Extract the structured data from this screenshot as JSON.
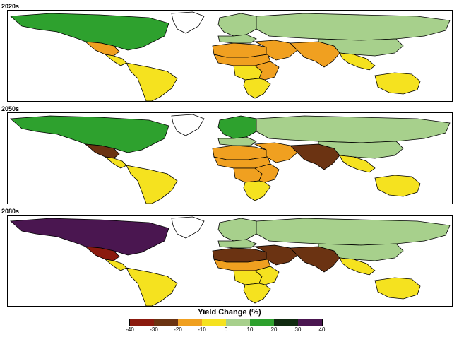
{
  "periods": [
    {
      "label": "2020s",
      "fills": {
        "north_america": "#2ea12e",
        "mexico": "#f0a020",
        "central_america": "#f5e21f",
        "south_america": "#f5e21f",
        "europe_north": "#a7d08c",
        "europe_south": "#a7d08c",
        "russia": "#a7d08c",
        "middle_east": "#f0a020",
        "north_africa": "#f0a020",
        "sahel": "#f0a020",
        "central_africa": "#f5e21f",
        "east_africa": "#f0a020",
        "southern_africa": "#f5e21f",
        "south_asia": "#f0a020",
        "china": "#a7d08c",
        "southeast_asia": "#f5e21f",
        "australia": "#f5e21f",
        "greenland": "#ffffff"
      }
    },
    {
      "label": "2050s",
      "fills": {
        "north_america": "#2ea12e",
        "mexico": "#6b3312",
        "central_america": "#f5e21f",
        "south_america": "#f5e21f",
        "europe_north": "#2ea12e",
        "europe_south": "#a7d08c",
        "russia": "#a7d08c",
        "middle_east": "#f0a020",
        "north_africa": "#f0a020",
        "sahel": "#f0a020",
        "central_africa": "#f0a020",
        "east_africa": "#f0a020",
        "southern_africa": "#f5e21f",
        "south_asia": "#6b3312",
        "china": "#a7d08c",
        "southeast_asia": "#f5e21f",
        "australia": "#f5e21f",
        "greenland": "#ffffff"
      }
    },
    {
      "label": "2080s",
      "fills": {
        "north_america": "#4a1650",
        "mexico": "#8b1a0e",
        "central_america": "#f5e21f",
        "south_america": "#f5e21f",
        "europe_north": "#a7d08c",
        "europe_south": "#a7d08c",
        "russia": "#a7d08c",
        "middle_east": "#6b3312",
        "north_africa": "#6b3312",
        "sahel": "#f0a020",
        "central_africa": "#f5e21f",
        "east_africa": "#f5e21f",
        "southern_africa": "#f5e21f",
        "south_asia": "#6b3312",
        "china": "#a7d08c",
        "southeast_asia": "#f5e21f",
        "australia": "#f5e21f",
        "greenland": "#ffffff"
      }
    }
  ],
  "legend": {
    "title": "Yield Change (%)",
    "colors": [
      "#8b1a0e",
      "#6b3312",
      "#f0a020",
      "#f5e21f",
      "#a7d08c",
      "#2ea12e",
      "#102a10",
      "#4a1650"
    ],
    "ticks": [
      "-40",
      "-30",
      "-20",
      "-10",
      "0",
      "10",
      "20",
      "30",
      "40"
    ]
  }
}
